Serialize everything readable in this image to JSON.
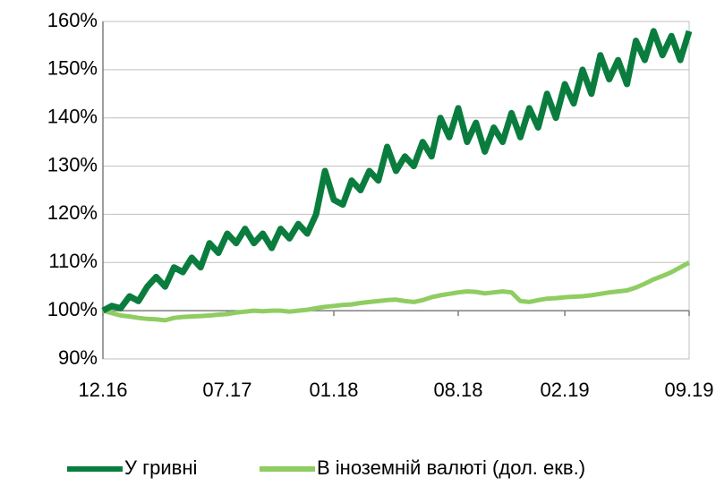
{
  "chart_data": {
    "type": "line",
    "categories": [
      "12.16",
      null,
      null,
      null,
      null,
      null,
      null,
      null,
      null,
      null,
      null,
      null,
      null,
      null,
      "07.17",
      null,
      null,
      null,
      null,
      null,
      null,
      null,
      null,
      null,
      null,
      null,
      "01.18",
      null,
      null,
      null,
      null,
      null,
      null,
      null,
      null,
      null,
      null,
      null,
      null,
      null,
      "08.18",
      null,
      null,
      null,
      null,
      null,
      null,
      null,
      null,
      null,
      null,
      null,
      "02.19",
      null,
      null,
      null,
      null,
      null,
      null,
      null,
      null,
      null,
      null,
      null,
      null,
      null,
      "09.19"
    ],
    "series": [
      {
        "name": "У гривні",
        "color": "#0a7d3e",
        "values": [
          100,
          101,
          100.5,
          103,
          102,
          105,
          107,
          105,
          109,
          108,
          111,
          109,
          114,
          112,
          116,
          114,
          117,
          114,
          116,
          113,
          117,
          115,
          118,
          116,
          120,
          129,
          123,
          122,
          127,
          125,
          129,
          127,
          134,
          129,
          132,
          130,
          135,
          132,
          140,
          136,
          142,
          135,
          139,
          133,
          138,
          135,
          141,
          136,
          142,
          138,
          145,
          140,
          147,
          143,
          150,
          145,
          153,
          148,
          152,
          147,
          156,
          152,
          158,
          153,
          157,
          152,
          158
        ]
      },
      {
        "name": "В іноземній валюті (дол. екв.)",
        "color": "#8fcd62",
        "values": [
          100,
          99.5,
          99,
          98.8,
          98.5,
          98.3,
          98.2,
          98,
          98.5,
          98.7,
          98.8,
          98.9,
          99,
          99.2,
          99.3,
          99.6,
          99.8,
          100,
          99.9,
          100,
          100,
          99.8,
          100,
          100.2,
          100.5,
          100.8,
          101,
          101.2,
          101.3,
          101.6,
          101.8,
          102,
          102.2,
          102.3,
          102,
          101.8,
          102.2,
          102.8,
          103.2,
          103.5,
          103.8,
          104,
          103.9,
          103.6,
          103.8,
          104,
          103.8,
          102,
          101.8,
          102.2,
          102.5,
          102.6,
          102.8,
          102.9,
          103,
          103.2,
          103.5,
          103.8,
          104,
          104.2,
          104.8,
          105.6,
          106.5,
          107.2,
          108,
          109,
          110
        ]
      }
    ],
    "ylim": [
      90,
      160
    ],
    "yticks": [
      {
        "value": 90,
        "label": "90%"
      },
      {
        "value": 100,
        "label": "100%"
      },
      {
        "value": 110,
        "label": "110%"
      },
      {
        "value": 120,
        "label": "120%"
      },
      {
        "value": 130,
        "label": "130%"
      },
      {
        "value": 140,
        "label": "140%"
      },
      {
        "value": 150,
        "label": "150%"
      },
      {
        "value": 160,
        "label": "160%"
      }
    ],
    "grid": true,
    "legend": "bottom"
  }
}
